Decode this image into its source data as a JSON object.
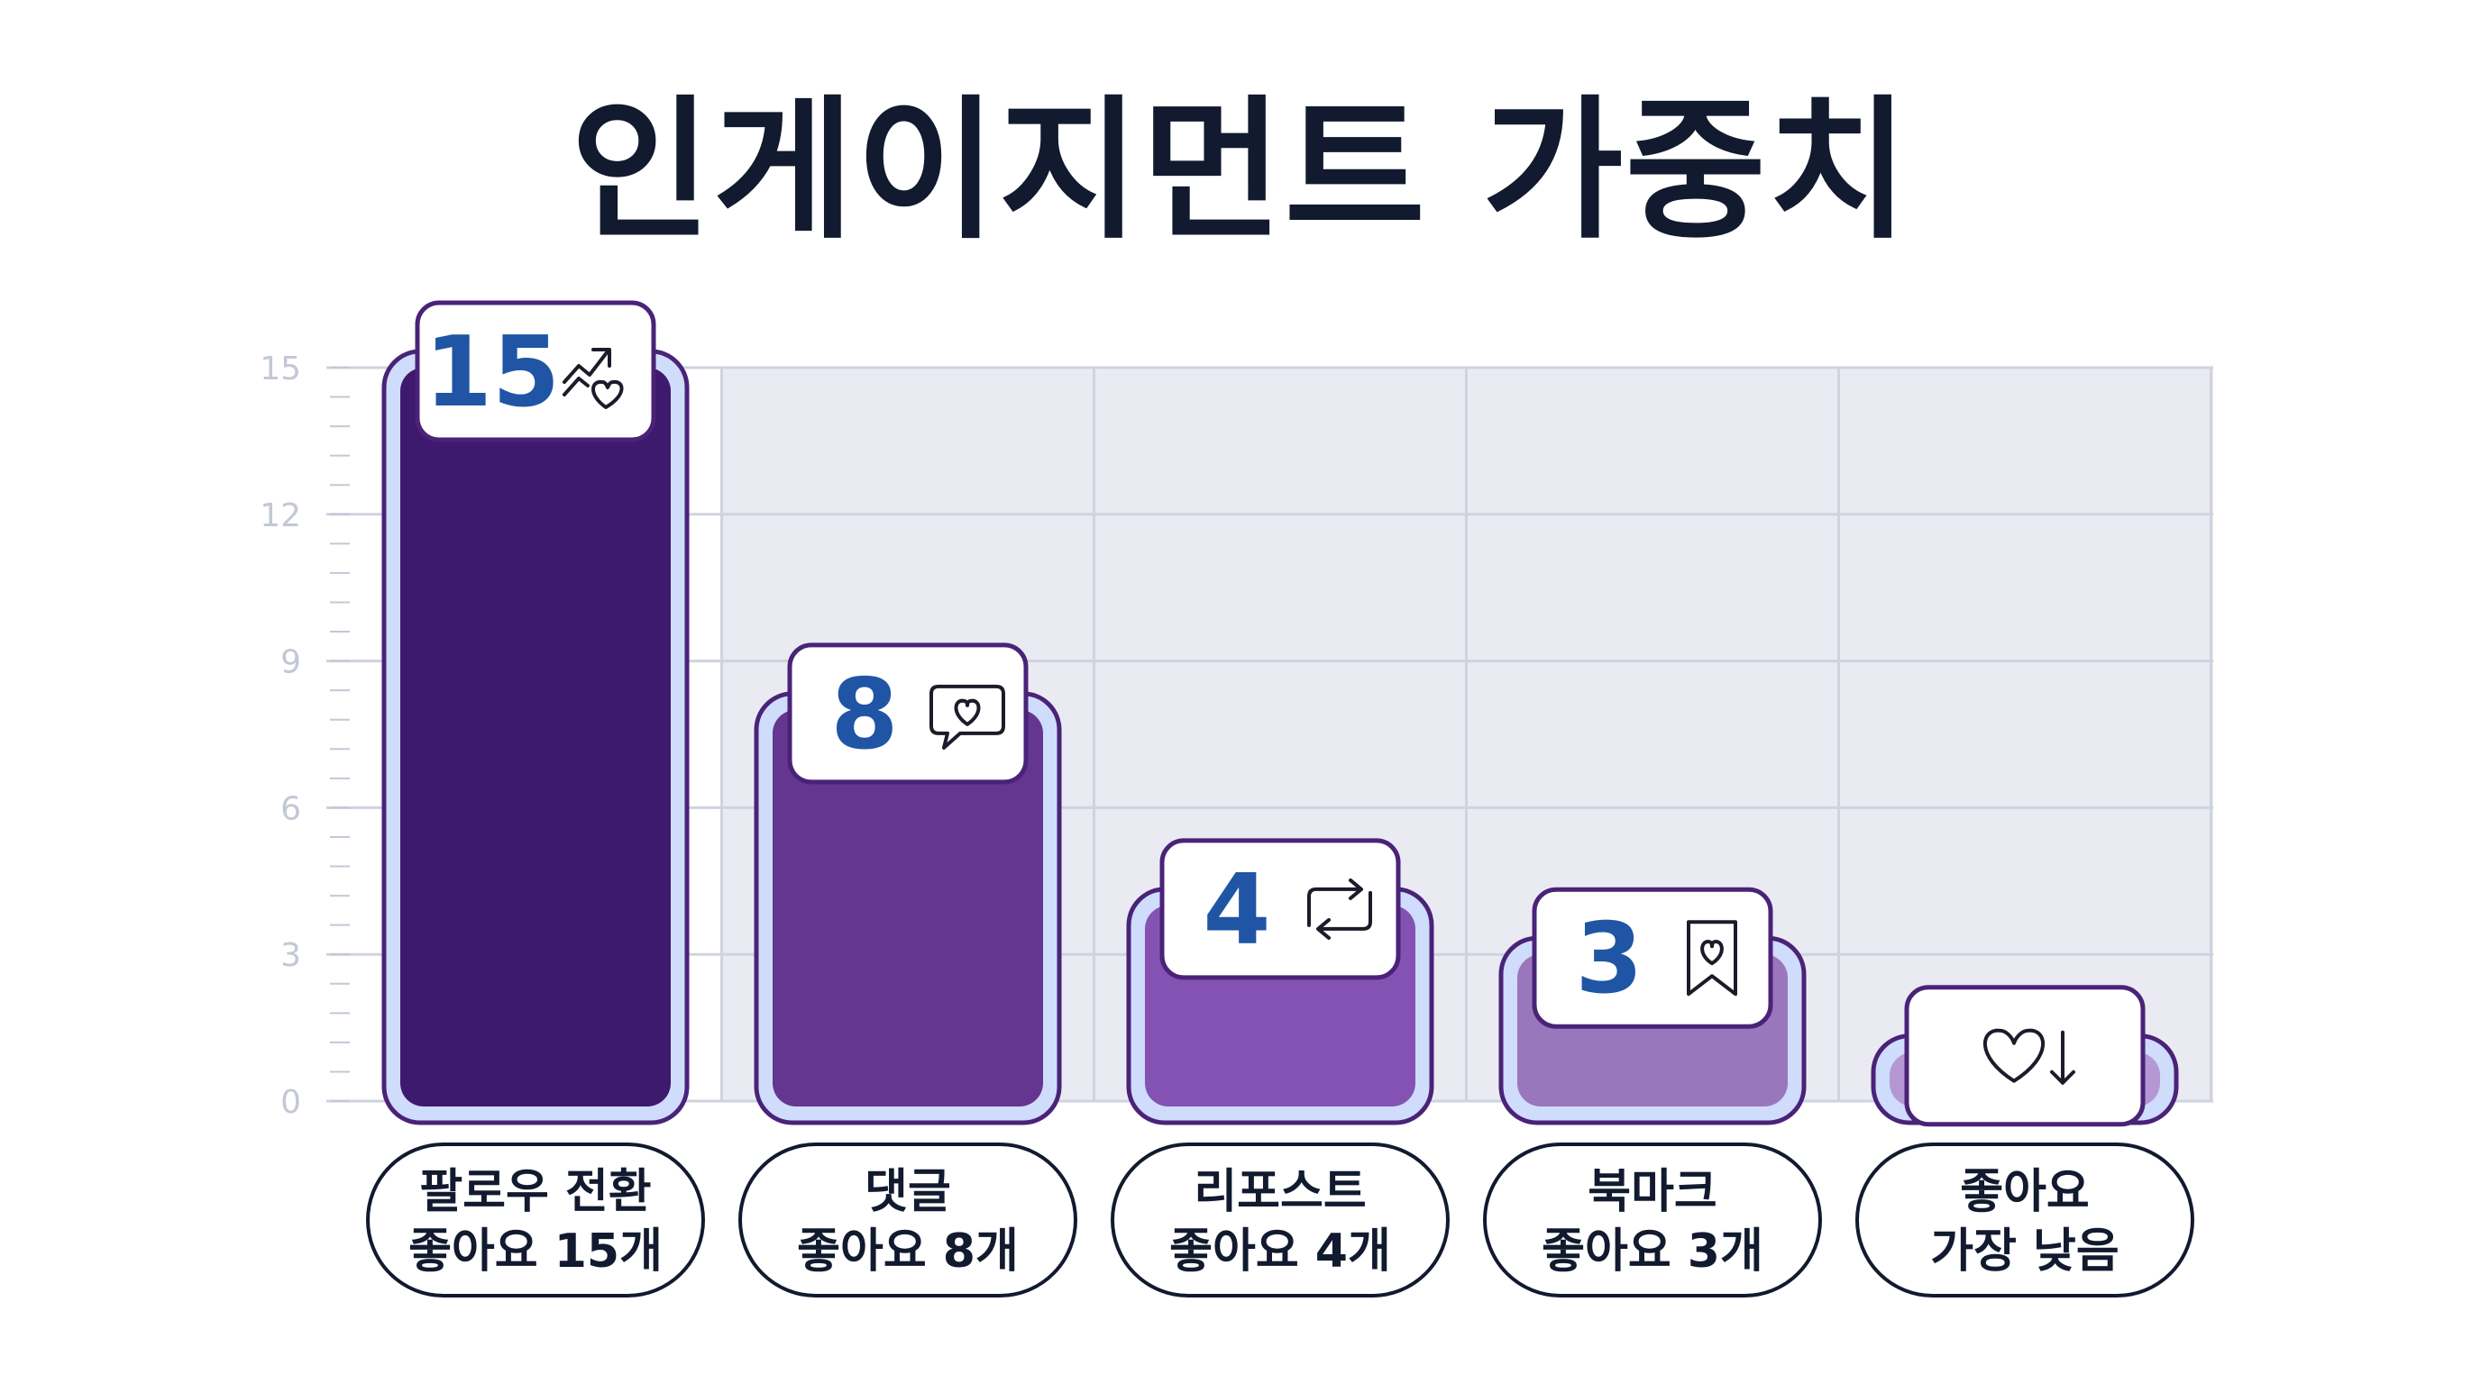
{
  "chart_data": {
    "type": "bar",
    "title": "인게이지먼트 가중치",
    "yticks": [
      0,
      3,
      6,
      9,
      12,
      15
    ],
    "ylim": [
      0,
      15
    ],
    "grid": true,
    "categories": [
      [
        "팔로우 전환",
        "좋아요 15개"
      ],
      [
        "댓글",
        "좋아요 8개"
      ],
      [
        "리포스트",
        "좋아요 4개"
      ],
      [
        "북마크",
        "좋아요 3개"
      ],
      [
        "좋아요",
        "가장 낮음"
      ]
    ],
    "values": [
      15,
      8,
      4,
      3,
      1
    ],
    "value_labels": [
      "15",
      "8",
      "4",
      "3",
      ""
    ],
    "icons": [
      "trending-heart-icon",
      "comment-heart-icon",
      "repost-icon",
      "bookmark-heart-icon",
      "heart-down-icon"
    ],
    "colors": [
      "#3e196e",
      "#643690",
      "#8352b3",
      "#9a77bc",
      "#b597d4"
    ]
  }
}
